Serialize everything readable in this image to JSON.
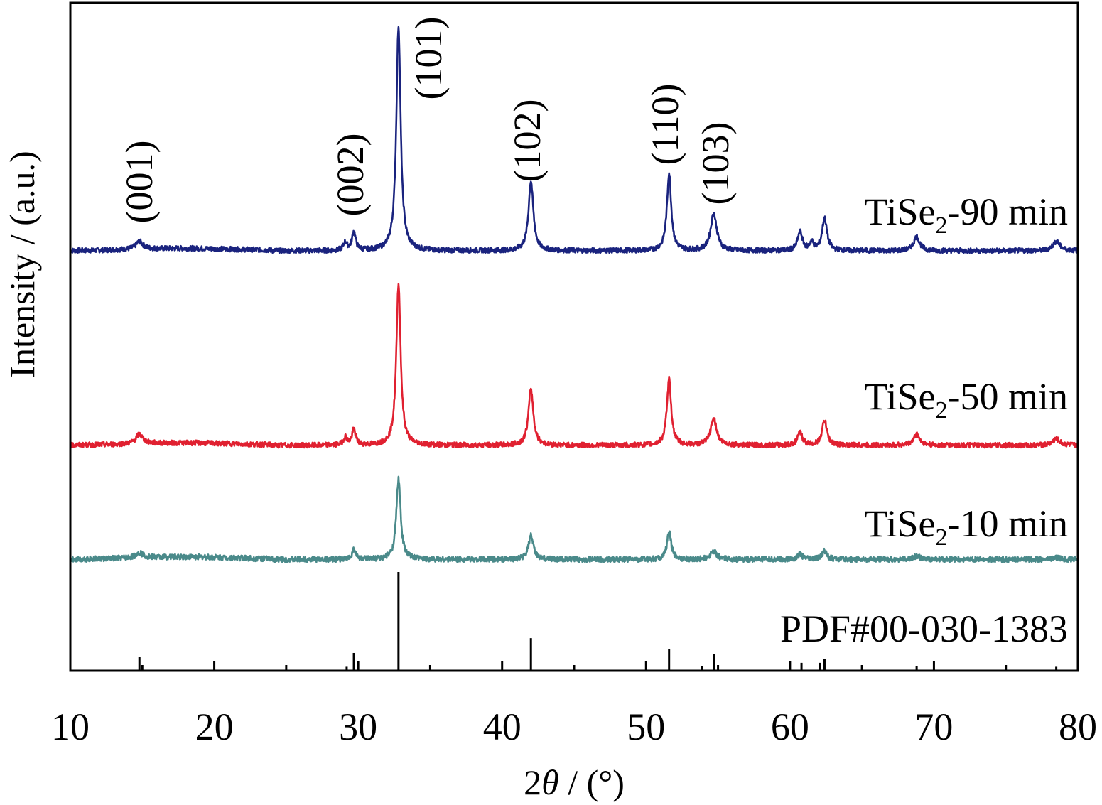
{
  "chart_data": {
    "type": "line",
    "xlabel_prefix": "2",
    "xlabel_symbol": "θ",
    "xlabel_unit": " / (°)",
    "ylabel": "Intensity / (a.u.)",
    "xlim": [
      10,
      80
    ],
    "x_ticks": [
      10,
      20,
      30,
      40,
      50,
      60,
      70,
      80
    ],
    "x_tick_labels": [
      "10",
      "20",
      "30",
      "40",
      "50",
      "60",
      "70",
      "80"
    ],
    "grid": false,
    "series": [
      {
        "name_prefix": "TiSe",
        "name_sub": "2",
        "name_suffix": "-90 min",
        "color": "#1a237e",
        "baseline": 0.6,
        "peaks": [
          [
            14.8,
            0.5,
            0.3
          ],
          [
            29.1,
            0.5,
            0.15
          ],
          [
            29.7,
            1.2,
            0.15
          ],
          [
            32.8,
            14.5,
            0.18
          ],
          [
            42.0,
            4.5,
            0.2
          ],
          [
            51.6,
            5.0,
            0.18
          ],
          [
            54.7,
            2.4,
            0.25
          ],
          [
            60.7,
            1.2,
            0.2
          ],
          [
            61.5,
            0.5,
            0.15
          ],
          [
            62.4,
            2.1,
            0.2
          ],
          [
            68.8,
            0.9,
            0.25
          ],
          [
            78.5,
            0.6,
            0.3
          ]
        ]
      },
      {
        "name_prefix": "TiSe",
        "name_sub": "2",
        "name_suffix": "-50 min",
        "color": "#e02030",
        "baseline": 0.6,
        "peaks": [
          [
            14.8,
            0.6,
            0.3
          ],
          [
            29.1,
            0.5,
            0.15
          ],
          [
            29.7,
            1.0,
            0.15
          ],
          [
            32.8,
            10.3,
            0.18
          ],
          [
            42.0,
            3.6,
            0.2
          ],
          [
            51.6,
            4.2,
            0.18
          ],
          [
            54.7,
            1.7,
            0.25
          ],
          [
            60.7,
            0.8,
            0.2
          ],
          [
            62.4,
            1.6,
            0.2
          ],
          [
            68.8,
            0.7,
            0.25
          ],
          [
            78.5,
            0.4,
            0.3
          ]
        ]
      },
      {
        "name_prefix": "TiSe",
        "name_sub": "2",
        "name_suffix": "-10 min",
        "color": "#4a8a8a",
        "baseline": 0.4,
        "peaks": [
          [
            14.8,
            0.3,
            0.3
          ],
          [
            29.7,
            0.6,
            0.15
          ],
          [
            32.8,
            4.7,
            0.18
          ],
          [
            42.0,
            1.4,
            0.2
          ],
          [
            51.6,
            1.6,
            0.18
          ],
          [
            54.7,
            0.5,
            0.25
          ],
          [
            60.7,
            0.3,
            0.2
          ],
          [
            62.4,
            0.5,
            0.2
          ],
          [
            68.8,
            0.2,
            0.25
          ],
          [
            78.5,
            0.1,
            0.3
          ]
        ]
      }
    ],
    "reference": {
      "name": "PDF#00-030-1383",
      "lines": [
        [
          14.8,
          0.14
        ],
        [
          29.2,
          0.04
        ],
        [
          29.7,
          0.18
        ],
        [
          32.8,
          1.0
        ],
        [
          42.0,
          0.33
        ],
        [
          51.6,
          0.22
        ],
        [
          53.9,
          0.05
        ],
        [
          54.7,
          0.17
        ],
        [
          60.8,
          0.08
        ],
        [
          62.1,
          0.08
        ],
        [
          62.4,
          0.12
        ],
        [
          68.8,
          0.05
        ],
        [
          78.5,
          0.04
        ]
      ]
    },
    "annotations": [
      {
        "text": "(001)",
        "x": 14.8
      },
      {
        "text": "(002)",
        "x": 29.7
      },
      {
        "text": "(101)",
        "x": 32.8
      },
      {
        "text": "(102)",
        "x": 42.0
      },
      {
        "text": "(110)",
        "x": 51.6
      },
      {
        "text": "(103)",
        "x": 54.7
      }
    ]
  }
}
